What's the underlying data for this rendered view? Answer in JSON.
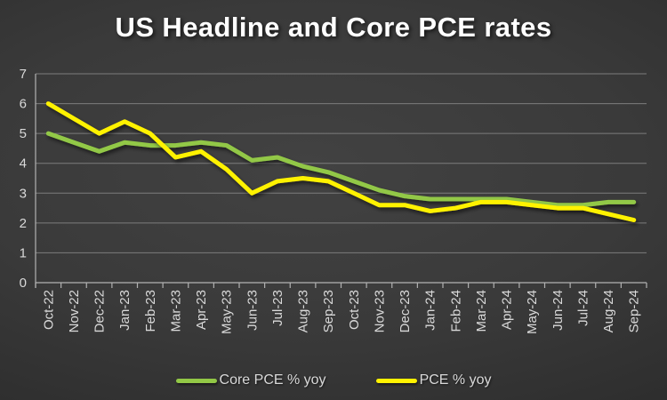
{
  "chart_data": {
    "type": "line",
    "title": "US Headline and Core PCE rates",
    "categories": [
      "Oct-22",
      "Nov-22",
      "Dec-22",
      "Jan-23",
      "Feb-23",
      "Mar-23",
      "Apr-23",
      "May-23",
      "Jun-23",
      "Jul-23",
      "Aug-23",
      "Sep-23",
      "Oct-23",
      "Nov-23",
      "Dec-23",
      "Jan-24",
      "Feb-24",
      "Mar-24",
      "Apr-24",
      "May-24",
      "Jun-24",
      "Jul-24",
      "Aug-24",
      "Sep-24"
    ],
    "series": [
      {
        "name": "Core PCE % yoy",
        "color": "#92c846",
        "values": [
          5.0,
          4.7,
          4.4,
          4.7,
          4.6,
          4.6,
          4.7,
          4.6,
          4.1,
          4.2,
          3.9,
          3.7,
          3.4,
          3.1,
          2.9,
          2.8,
          2.8,
          2.8,
          2.8,
          2.7,
          2.6,
          2.6,
          2.7,
          2.7
        ]
      },
      {
        "name": "PCE % yoy",
        "color": "#fff200",
        "values": [
          6.0,
          5.5,
          5.0,
          5.4,
          5.0,
          4.2,
          4.4,
          3.8,
          3.0,
          3.4,
          3.5,
          3.4,
          3.0,
          2.6,
          2.6,
          2.4,
          2.5,
          2.7,
          2.7,
          2.6,
          2.5,
          2.5,
          2.3,
          2.1
        ]
      }
    ],
    "xlabel": "",
    "ylabel": "",
    "ylim": [
      0,
      7
    ],
    "yticks": [
      0,
      1,
      2,
      3,
      4,
      5,
      6,
      7
    ],
    "grid": true,
    "legend_position": "bottom",
    "x_label_rotation": -90
  }
}
